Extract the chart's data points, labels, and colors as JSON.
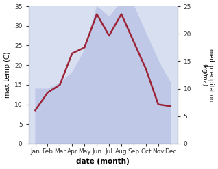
{
  "months": [
    "Jan",
    "Feb",
    "Mar",
    "Apr",
    "May",
    "Jun",
    "Jul",
    "Aug",
    "Sep",
    "Oct",
    "Nov",
    "Dec"
  ],
  "temperature": [
    8.5,
    13.0,
    15.0,
    23.0,
    24.5,
    33.0,
    27.5,
    33.0,
    26.0,
    19.0,
    10.0,
    9.5
  ],
  "precipitation": [
    10.0,
    10.0,
    11.0,
    13.0,
    17.0,
    25.0,
    23.0,
    26.0,
    25.0,
    20.0,
    15.0,
    11.0
  ],
  "temp_color": "#9b2335",
  "precip_fill_color": "#c0c8e8",
  "ylabel_left": "max temp (C)",
  "ylabel_right": "med. precipitation\n(kg/m2)",
  "xlabel": "date (month)",
  "ylim_left": [
    0,
    35
  ],
  "ylim_right": [
    0,
    25
  ],
  "yticks_left": [
    0,
    5,
    10,
    15,
    20,
    25,
    30,
    35
  ],
  "yticks_right": [
    0,
    5,
    10,
    15,
    20,
    25
  ],
  "plot_bg_color": "#d8dff0",
  "fig_bg_color": "#ffffff",
  "line_width": 1.8,
  "temp_scale_factor": 1.4
}
